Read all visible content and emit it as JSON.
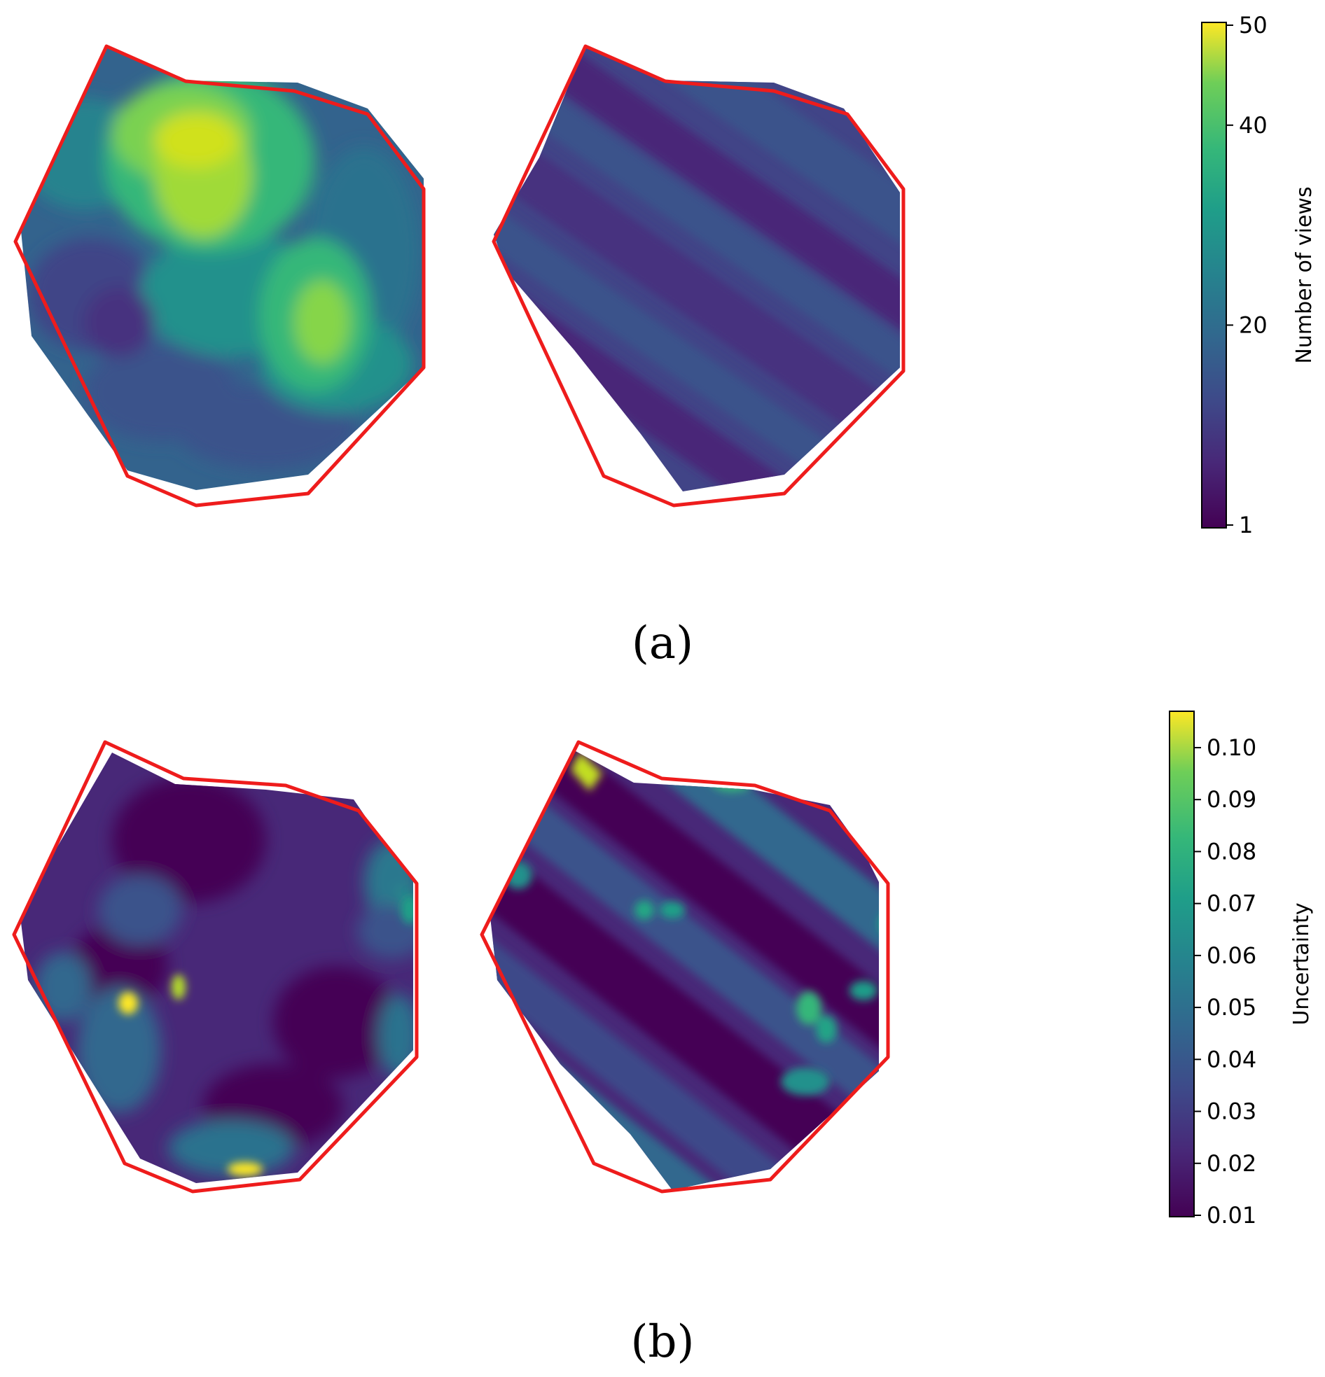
{
  "figure": {
    "panels": [
      {
        "label": "(a)"
      },
      {
        "label": "(b)"
      }
    ]
  },
  "chart_data": [
    {
      "type": "heatmap",
      "panel": "(a)",
      "maps": 2,
      "boundary_color": "#ee1c1c",
      "colormap": "viridis",
      "colorbar": {
        "label": "Number of views",
        "ticks": [
          "1",
          "20",
          "40",
          "50"
        ],
        "tick_values": [
          1,
          20,
          40,
          50
        ],
        "range": [
          1,
          50
        ]
      }
    },
    {
      "type": "heatmap",
      "panel": "(b)",
      "maps": 2,
      "boundary_color": "#ee1c1c",
      "colormap": "viridis",
      "colorbar": {
        "label": "Uncertainty",
        "ticks": [
          "0.01",
          "0.02",
          "0.03",
          "0.04",
          "0.05",
          "0.06",
          "0.07",
          "0.08",
          "0.09",
          "0.10"
        ],
        "tick_values": [
          0.01,
          0.02,
          0.03,
          0.04,
          0.05,
          0.06,
          0.07,
          0.08,
          0.09,
          0.1
        ],
        "range": [
          0.01,
          0.107
        ]
      }
    }
  ]
}
